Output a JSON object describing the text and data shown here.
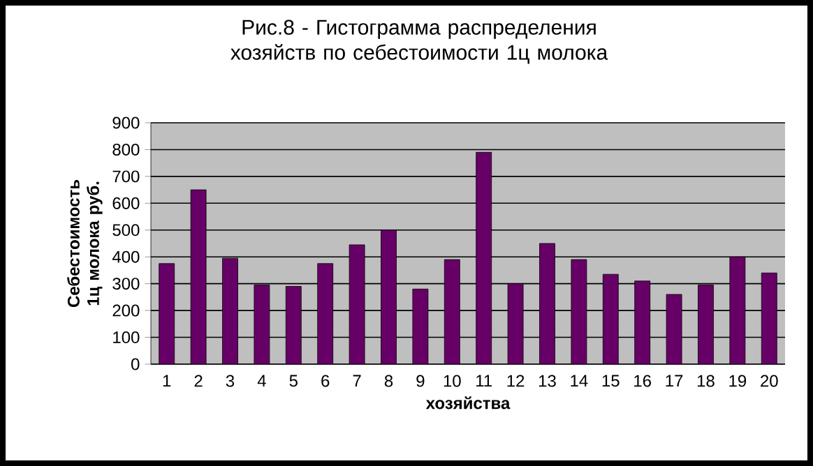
{
  "chart_data": {
    "type": "bar",
    "title": "Рис.8 - Гистограмма распределения хозяйств по себестоимости 1ц молока",
    "xlabel": "хозяйства",
    "ylabel": "Себестоимость 1ц молока руб.",
    "categories": [
      "1",
      "2",
      "3",
      "4",
      "5",
      "6",
      "7",
      "8",
      "9",
      "10",
      "11",
      "12",
      "13",
      "14",
      "15",
      "16",
      "17",
      "18",
      "19",
      "20"
    ],
    "values": [
      375,
      650,
      395,
      295,
      290,
      375,
      445,
      500,
      280,
      390,
      790,
      300,
      450,
      390,
      335,
      310,
      260,
      295,
      400,
      340
    ],
    "color": "#660066",
    "ylim": [
      0,
      900
    ],
    "yticks": [
      0,
      100,
      200,
      300,
      400,
      500,
      600,
      700,
      800,
      900
    ],
    "grid": "y"
  }
}
